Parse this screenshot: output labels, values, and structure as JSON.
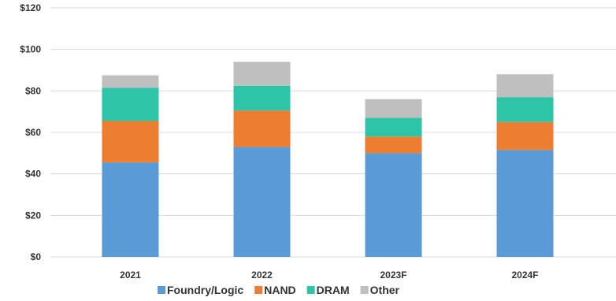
{
  "chart_data": {
    "type": "bar",
    "stacked": true,
    "title": "",
    "xlabel": "",
    "ylabel": "",
    "categories": [
      "2021",
      "2022",
      "2023F",
      "2024F"
    ],
    "ylim": [
      0,
      120
    ],
    "y_ticks": [
      0,
      20,
      40,
      60,
      80,
      100,
      120
    ],
    "y_tick_labels": [
      "$0",
      "$20",
      "$40",
      "$60",
      "$80",
      "$100",
      "$120"
    ],
    "grid": true,
    "legend_position": "bottom",
    "series": [
      {
        "name": "Foundry/Logic",
        "color": "#5b9bd5",
        "values": [
          45.5,
          53,
          50,
          51.5
        ]
      },
      {
        "name": "NAND",
        "color": "#ed7d31",
        "values": [
          20,
          17.5,
          8,
          13.5
        ]
      },
      {
        "name": "DRAM",
        "color": "#2ec4a7",
        "values": [
          16,
          12,
          9,
          12
        ]
      },
      {
        "name": "Other",
        "color": "#bfbfbf",
        "values": [
          6,
          11.5,
          9,
          11
        ]
      }
    ]
  }
}
